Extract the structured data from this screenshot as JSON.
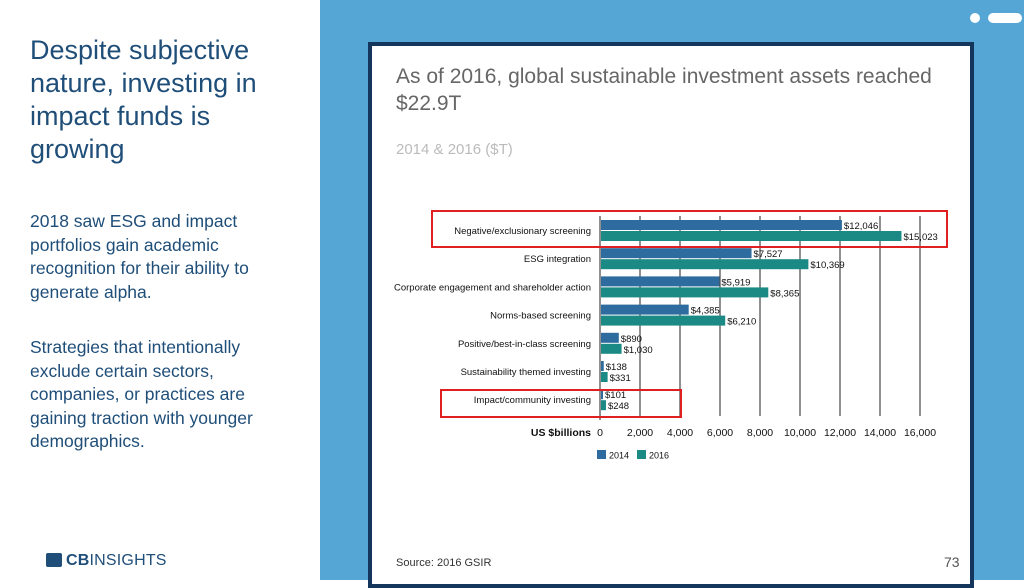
{
  "slide": {
    "title": "Despite subjective nature, investing in impact funds is growing",
    "paragraphs": [
      "2018 saw ESG and impact portfolios gain academic recognition for their ability to generate alpha.",
      "Strategies that intentionally exclude certain sectors, companies, or practices are gaining traction with younger demographics."
    ],
    "logo_bold": "CB",
    "logo_rest": "INSIGHTS",
    "page_number": "73"
  },
  "chart": {
    "title": "As of 2016, global sustainable investment assets reached $22.9T",
    "subtitle": "2014 & 2016 ($T)",
    "source": "Source: 2016 GSIR"
  },
  "colors": {
    "series_2014": "#2e6b9e",
    "series_2016": "#1b8a84",
    "highlight_box": "#e02020",
    "text_blue": "#1f4e79",
    "background_blue": "#55a6d4",
    "frame": "#14365c"
  },
  "chart_data": {
    "type": "bar",
    "orientation": "horizontal",
    "categories": [
      "Negative/exclusionary screening",
      "ESG integration",
      "Corporate engagement and shareholder action",
      "Norms-based screening",
      "Positive/best-in-class screening",
      "Sustainability themed investing",
      "Impact/community investing"
    ],
    "series": [
      {
        "name": "2014",
        "values": [
          12046,
          7527,
          5919,
          4385,
          890,
          138,
          101
        ]
      },
      {
        "name": "2016",
        "values": [
          15023,
          10369,
          8365,
          6210,
          1030,
          331,
          248
        ]
      }
    ],
    "value_labels": [
      [
        "$12,046",
        "$7,527",
        "$5,919",
        "$4,385",
        "$890",
        "$138",
        "$101"
      ],
      [
        "$15,023",
        "$10,369",
        "$8,365",
        "$6,210",
        "$1,030",
        "$331",
        "$248"
      ]
    ],
    "xlabel": "US $billions",
    "xlim": [
      0,
      16000
    ],
    "xticks": [
      0,
      2000,
      4000,
      6000,
      8000,
      10000,
      12000,
      14000,
      16000
    ],
    "xtick_labels": [
      "0",
      "2,000",
      "4,000",
      "6,000",
      "8,000",
      "10,000",
      "12,000",
      "14,000",
      "16,000"
    ],
    "highlighted_categories": [
      "Negative/exclusionary screening",
      "Impact/community investing"
    ],
    "grid": true,
    "legend_position": "bottom"
  }
}
